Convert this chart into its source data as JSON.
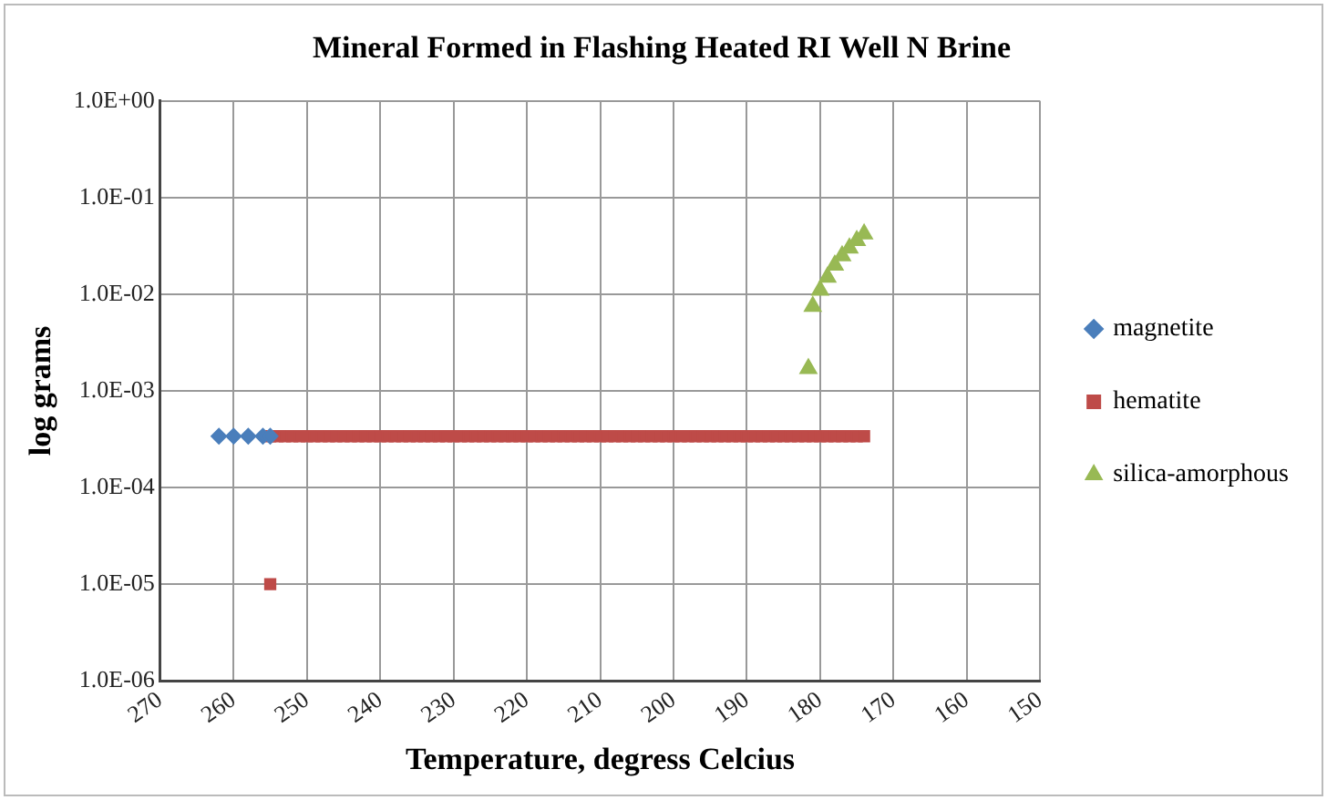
{
  "chart_data": {
    "type": "scatter",
    "title": "Mineral Formed in Flashing Heated RI Well N Brine",
    "xlabel": "Temperature, degress Celcius",
    "ylabel": "log grams",
    "log": "y",
    "grid": true,
    "legend": "right",
    "xlim": [
      270,
      150
    ],
    "xticks": [
      270,
      260,
      250,
      240,
      230,
      220,
      210,
      200,
      190,
      180,
      170,
      160,
      150
    ],
    "ylim": [
      1e-06,
      1
    ],
    "yticks": [
      {
        "value": 1e-06,
        "label": "1.0E-06"
      },
      {
        "value": 1e-05,
        "label": "1.0E-05"
      },
      {
        "value": 0.0001,
        "label": "1.0E-04"
      },
      {
        "value": 0.001,
        "label": "1.0E-03"
      },
      {
        "value": 0.01,
        "label": "1.0E-02"
      },
      {
        "value": 0.1,
        "label": "1.0E-01"
      },
      {
        "value": 1,
        "label": "1.0E+00"
      }
    ],
    "series": [
      {
        "name": "magnetite",
        "color": "#4a7ebb",
        "marker": "diamond",
        "x": [
          262,
          260,
          258,
          256,
          255
        ],
        "values": [
          0.00034,
          0.00034,
          0.00034,
          0.00034,
          0.00034
        ]
      },
      {
        "name": "hematite",
        "color": "#be4b48",
        "marker": "square",
        "x": [
          255,
          254,
          253,
          252,
          251,
          250,
          249,
          248,
          247,
          246,
          245,
          244,
          243,
          242,
          241,
          240,
          239,
          238,
          237,
          236,
          235,
          234,
          233,
          232,
          231,
          230,
          229,
          228,
          227,
          226,
          225,
          224,
          223,
          222,
          221,
          220,
          219,
          218,
          217,
          216,
          215,
          214,
          213,
          212,
          211,
          210,
          209,
          208,
          207,
          206,
          205,
          204,
          203,
          202,
          201,
          200,
          199,
          198,
          197,
          196,
          195,
          194,
          193,
          192,
          191,
          190,
          189,
          188,
          187,
          186,
          185,
          184,
          183,
          182,
          181,
          180,
          179,
          178,
          177,
          176,
          175,
          174,
          255
        ],
        "values": [
          0.00034,
          0.00034,
          0.00034,
          0.00034,
          0.00034,
          0.00034,
          0.00034,
          0.00034,
          0.00034,
          0.00034,
          0.00034,
          0.00034,
          0.00034,
          0.00034,
          0.00034,
          0.00034,
          0.00034,
          0.00034,
          0.00034,
          0.00034,
          0.00034,
          0.00034,
          0.00034,
          0.00034,
          0.00034,
          0.00034,
          0.00034,
          0.00034,
          0.00034,
          0.00034,
          0.00034,
          0.00034,
          0.00034,
          0.00034,
          0.00034,
          0.00034,
          0.00034,
          0.00034,
          0.00034,
          0.00034,
          0.00034,
          0.00034,
          0.00034,
          0.00034,
          0.00034,
          0.00034,
          0.00034,
          0.00034,
          0.00034,
          0.00034,
          0.00034,
          0.00034,
          0.00034,
          0.00034,
          0.00034,
          0.00034,
          0.00034,
          0.00034,
          0.00034,
          0.00034,
          0.00034,
          0.00034,
          0.00034,
          0.00034,
          0.00034,
          0.00034,
          0.00034,
          0.00034,
          0.00034,
          0.00034,
          0.00034,
          0.00034,
          0.00034,
          0.00034,
          0.00034,
          0.00034,
          0.00034,
          0.00034,
          0.00034,
          0.00034,
          0.00034,
          0.00034,
          1e-05
        ]
      },
      {
        "name": "silica-amorphous",
        "color": "#98b954",
        "marker": "triangle",
        "x": [
          181.6,
          181,
          180,
          179,
          178,
          177,
          176,
          175,
          174
        ],
        "values": [
          0.0017,
          0.0075,
          0.011,
          0.015,
          0.02,
          0.025,
          0.03,
          0.036,
          0.042
        ]
      }
    ]
  }
}
